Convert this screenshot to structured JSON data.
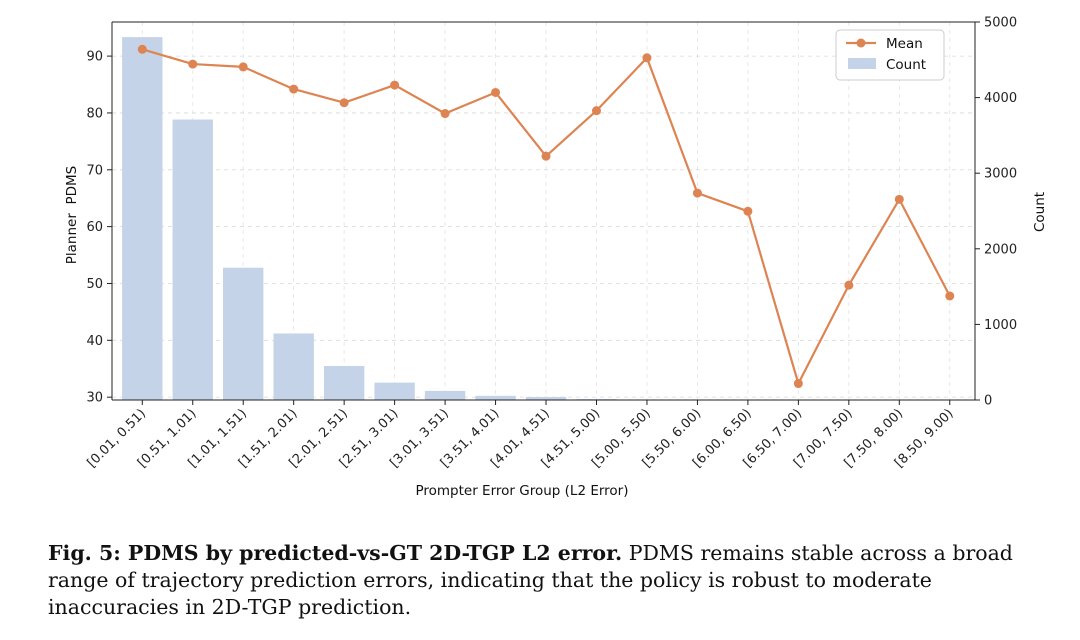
{
  "chart_data": {
    "type": "bar+line",
    "title": "",
    "xlabel": "Prompter Error Group (L2 Error)",
    "ylabel_left": "Planner  PDMS",
    "ylabel_right": "Count",
    "categories": [
      "[0.01, 0.51)",
      "[0.51, 1.01)",
      "[1.01, 1.51)",
      "[1.51, 2.01)",
      "[2.01, 2.51)",
      "[2.51, 3.01)",
      "[3.01, 3.51)",
      "[3.51, 4.01)",
      "[4.01, 4.51)",
      "[4.51, 5.00)",
      "[5.00, 5.50)",
      "[5.50, 6.00)",
      "[6.00, 6.50)",
      "[6.50, 7.00)",
      "[7.00, 7.50)",
      "[7.50, 8.00)",
      "[8.50, 9.00)"
    ],
    "series": [
      {
        "name": "Mean",
        "kind": "line",
        "axis": "left",
        "color": "#dd8452",
        "values": [
          91.2,
          88.6,
          88.1,
          84.2,
          81.8,
          84.9,
          79.9,
          83.6,
          72.4,
          80.4,
          89.7,
          65.9,
          62.7,
          32.4,
          49.7,
          64.8,
          47.8
        ]
      },
      {
        "name": "Count",
        "kind": "bar",
        "axis": "right",
        "color": "#c5d3e8",
        "values": [
          4800,
          3710,
          1750,
          880,
          450,
          230,
          120,
          55,
          40,
          12,
          6,
          5,
          3,
          2,
          2,
          2,
          2
        ]
      }
    ],
    "ylim_left": [
      29.5,
      96
    ],
    "yticks_left": [
      30,
      40,
      50,
      60,
      70,
      80,
      90
    ],
    "ylim_right": [
      0,
      5000
    ],
    "yticks_right": [
      0,
      1000,
      2000,
      3000,
      4000,
      5000
    ],
    "grid": true,
    "legend_position": "top-right"
  },
  "caption": {
    "label": "Fig. 5: PDMS by predicted-vs-GT 2D-TGP L2 error.",
    "text": "PDMS remains stable across a broad range of trajectory prediction errors, indicating that the policy is robust to moderate inaccuracies in 2D-TGP prediction."
  }
}
